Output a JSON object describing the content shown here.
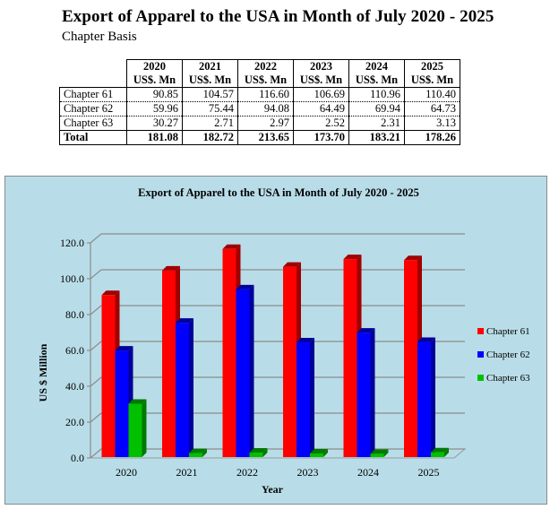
{
  "header": {
    "title": "Export of Apparel to the USA in Month of July 2020 - 2025",
    "subtitle": "Chapter Basis"
  },
  "table": {
    "columns": [
      {
        "year": "2020",
        "unit": "US$. Mn"
      },
      {
        "year": "2021",
        "unit": "US$. Mn"
      },
      {
        "year": "2022",
        "unit": "US$. Mn"
      },
      {
        "year": "2023",
        "unit": "US$. Mn"
      },
      {
        "year": "2024",
        "unit": "US$. Mn"
      },
      {
        "year": "2025",
        "unit": "US$. Mn"
      }
    ],
    "rows": [
      {
        "label": "Chapter 61",
        "values": [
          "90.85",
          "104.57",
          "116.60",
          "106.69",
          "110.96",
          "110.40"
        ]
      },
      {
        "label": "Chapter 62",
        "values": [
          "59.96",
          "75.44",
          "94.08",
          "64.49",
          "69.94",
          "64.73"
        ]
      },
      {
        "label": "Chapter 63",
        "values": [
          "30.27",
          "2.71",
          "2.97",
          "2.52",
          "2.31",
          "3.13"
        ]
      }
    ],
    "total": {
      "label": "Total",
      "values": [
        "181.08",
        "182.72",
        "213.65",
        "173.70",
        "183.21",
        "178.26"
      ]
    }
  },
  "chart_data": {
    "type": "bar",
    "style": "3d-clustered-column",
    "title": "Export of Apparel to the USA in Month of July 2020 - 2025",
    "xlabel": "Year",
    "ylabel": "US $ Million",
    "categories": [
      "2020",
      "2021",
      "2022",
      "2023",
      "2024",
      "2025"
    ],
    "series": [
      {
        "name": "Chapter 61",
        "color": "#FF0000",
        "side_color": "#A00000",
        "values": [
          90.85,
          104.57,
          116.6,
          106.69,
          110.96,
          110.4
        ]
      },
      {
        "name": "Chapter 62",
        "color": "#0000FF",
        "side_color": "#00009A",
        "values": [
          59.96,
          75.44,
          94.08,
          64.49,
          69.94,
          64.73
        ]
      },
      {
        "name": "Chapter 63",
        "color": "#00C000",
        "side_color": "#007A00",
        "values": [
          30.27,
          2.71,
          2.97,
          2.52,
          2.31,
          3.13
        ]
      }
    ],
    "ylim": [
      0,
      120
    ],
    "yticks": [
      "0.0",
      "20.0",
      "40.0",
      "60.0",
      "80.0",
      "100.0",
      "120.0"
    ],
    "grid": true,
    "legend": "right",
    "background": "#B8DDE8"
  }
}
